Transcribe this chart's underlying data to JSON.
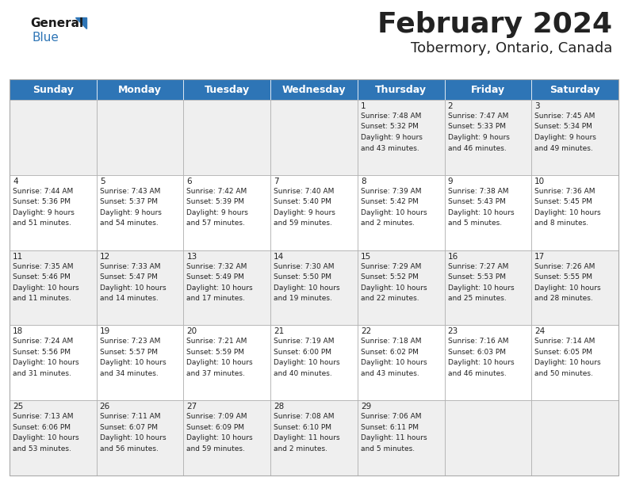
{
  "title": "February 2024",
  "subtitle": "Tobermory, Ontario, Canada",
  "header_color": "#2e75b6",
  "header_text_color": "#ffffff",
  "cell_bg_even": "#efefef",
  "cell_bg_odd": "#ffffff",
  "day_names": [
    "Sunday",
    "Monday",
    "Tuesday",
    "Wednesday",
    "Thursday",
    "Friday",
    "Saturday"
  ],
  "title_fontsize": 26,
  "subtitle_fontsize": 13,
  "header_fontsize": 9,
  "cell_fontsize": 6.5,
  "day_num_fontsize": 7.5,
  "grid_color": "#aaaaaa",
  "text_color": "#222222",
  "logo_black": "#1a1a1a",
  "logo_blue": "#2e75b6",
  "calendar": [
    [
      {
        "day": "",
        "lines": []
      },
      {
        "day": "",
        "lines": []
      },
      {
        "day": "",
        "lines": []
      },
      {
        "day": "",
        "lines": []
      },
      {
        "day": "1",
        "lines": [
          "Sunrise: 7:48 AM",
          "Sunset: 5:32 PM",
          "Daylight: 9 hours",
          "and 43 minutes."
        ]
      },
      {
        "day": "2",
        "lines": [
          "Sunrise: 7:47 AM",
          "Sunset: 5:33 PM",
          "Daylight: 9 hours",
          "and 46 minutes."
        ]
      },
      {
        "day": "3",
        "lines": [
          "Sunrise: 7:45 AM",
          "Sunset: 5:34 PM",
          "Daylight: 9 hours",
          "and 49 minutes."
        ]
      }
    ],
    [
      {
        "day": "4",
        "lines": [
          "Sunrise: 7:44 AM",
          "Sunset: 5:36 PM",
          "Daylight: 9 hours",
          "and 51 minutes."
        ]
      },
      {
        "day": "5",
        "lines": [
          "Sunrise: 7:43 AM",
          "Sunset: 5:37 PM",
          "Daylight: 9 hours",
          "and 54 minutes."
        ]
      },
      {
        "day": "6",
        "lines": [
          "Sunrise: 7:42 AM",
          "Sunset: 5:39 PM",
          "Daylight: 9 hours",
          "and 57 minutes."
        ]
      },
      {
        "day": "7",
        "lines": [
          "Sunrise: 7:40 AM",
          "Sunset: 5:40 PM",
          "Daylight: 9 hours",
          "and 59 minutes."
        ]
      },
      {
        "day": "8",
        "lines": [
          "Sunrise: 7:39 AM",
          "Sunset: 5:42 PM",
          "Daylight: 10 hours",
          "and 2 minutes."
        ]
      },
      {
        "day": "9",
        "lines": [
          "Sunrise: 7:38 AM",
          "Sunset: 5:43 PM",
          "Daylight: 10 hours",
          "and 5 minutes."
        ]
      },
      {
        "day": "10",
        "lines": [
          "Sunrise: 7:36 AM",
          "Sunset: 5:45 PM",
          "Daylight: 10 hours",
          "and 8 minutes."
        ]
      }
    ],
    [
      {
        "day": "11",
        "lines": [
          "Sunrise: 7:35 AM",
          "Sunset: 5:46 PM",
          "Daylight: 10 hours",
          "and 11 minutes."
        ]
      },
      {
        "day": "12",
        "lines": [
          "Sunrise: 7:33 AM",
          "Sunset: 5:47 PM",
          "Daylight: 10 hours",
          "and 14 minutes."
        ]
      },
      {
        "day": "13",
        "lines": [
          "Sunrise: 7:32 AM",
          "Sunset: 5:49 PM",
          "Daylight: 10 hours",
          "and 17 minutes."
        ]
      },
      {
        "day": "14",
        "lines": [
          "Sunrise: 7:30 AM",
          "Sunset: 5:50 PM",
          "Daylight: 10 hours",
          "and 19 minutes."
        ]
      },
      {
        "day": "15",
        "lines": [
          "Sunrise: 7:29 AM",
          "Sunset: 5:52 PM",
          "Daylight: 10 hours",
          "and 22 minutes."
        ]
      },
      {
        "day": "16",
        "lines": [
          "Sunrise: 7:27 AM",
          "Sunset: 5:53 PM",
          "Daylight: 10 hours",
          "and 25 minutes."
        ]
      },
      {
        "day": "17",
        "lines": [
          "Sunrise: 7:26 AM",
          "Sunset: 5:55 PM",
          "Daylight: 10 hours",
          "and 28 minutes."
        ]
      }
    ],
    [
      {
        "day": "18",
        "lines": [
          "Sunrise: 7:24 AM",
          "Sunset: 5:56 PM",
          "Daylight: 10 hours",
          "and 31 minutes."
        ]
      },
      {
        "day": "19",
        "lines": [
          "Sunrise: 7:23 AM",
          "Sunset: 5:57 PM",
          "Daylight: 10 hours",
          "and 34 minutes."
        ]
      },
      {
        "day": "20",
        "lines": [
          "Sunrise: 7:21 AM",
          "Sunset: 5:59 PM",
          "Daylight: 10 hours",
          "and 37 minutes."
        ]
      },
      {
        "day": "21",
        "lines": [
          "Sunrise: 7:19 AM",
          "Sunset: 6:00 PM",
          "Daylight: 10 hours",
          "and 40 minutes."
        ]
      },
      {
        "day": "22",
        "lines": [
          "Sunrise: 7:18 AM",
          "Sunset: 6:02 PM",
          "Daylight: 10 hours",
          "and 43 minutes."
        ]
      },
      {
        "day": "23",
        "lines": [
          "Sunrise: 7:16 AM",
          "Sunset: 6:03 PM",
          "Daylight: 10 hours",
          "and 46 minutes."
        ]
      },
      {
        "day": "24",
        "lines": [
          "Sunrise: 7:14 AM",
          "Sunset: 6:05 PM",
          "Daylight: 10 hours",
          "and 50 minutes."
        ]
      }
    ],
    [
      {
        "day": "25",
        "lines": [
          "Sunrise: 7:13 AM",
          "Sunset: 6:06 PM",
          "Daylight: 10 hours",
          "and 53 minutes."
        ]
      },
      {
        "day": "26",
        "lines": [
          "Sunrise: 7:11 AM",
          "Sunset: 6:07 PM",
          "Daylight: 10 hours",
          "and 56 minutes."
        ]
      },
      {
        "day": "27",
        "lines": [
          "Sunrise: 7:09 AM",
          "Sunset: 6:09 PM",
          "Daylight: 10 hours",
          "and 59 minutes."
        ]
      },
      {
        "day": "28",
        "lines": [
          "Sunrise: 7:08 AM",
          "Sunset: 6:10 PM",
          "Daylight: 11 hours",
          "and 2 minutes."
        ]
      },
      {
        "day": "29",
        "lines": [
          "Sunrise: 7:06 AM",
          "Sunset: 6:11 PM",
          "Daylight: 11 hours",
          "and 5 minutes."
        ]
      },
      {
        "day": "",
        "lines": []
      },
      {
        "day": "",
        "lines": []
      }
    ]
  ]
}
